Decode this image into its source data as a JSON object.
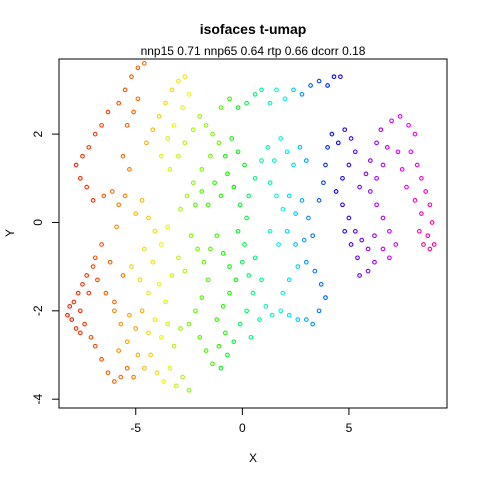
{
  "chart_data": {
    "type": "scatter",
    "title": "isofaces t-umap",
    "subtitle": "nnp15 0.71 nnp65 0.64 rtp 0.66 dcorr 0.18",
    "xlabel": "X",
    "ylabel": "Y",
    "xlim": [
      -8.6,
      9.6
    ],
    "ylim": [
      -4.2,
      3.7
    ],
    "xticks": [
      -5,
      0,
      5
    ],
    "yticks": [
      -4,
      -2,
      0,
      2
    ],
    "x_tick_labels": [
      "-5",
      "0",
      "5"
    ],
    "y_tick_labels": [
      "-4",
      "-2",
      "0",
      "2"
    ],
    "grid": false,
    "legend": "none",
    "color_scale": "rainbow (hue by point order)",
    "points": [
      [
        -8.2,
        -2.1,
        0.02
      ],
      [
        -8.1,
        -1.9,
        0.02
      ],
      [
        -8.0,
        -2.2,
        0.02
      ],
      [
        -7.9,
        -1.8,
        0.03
      ],
      [
        -7.8,
        -2.4,
        0.03
      ],
      [
        -7.7,
        -1.6,
        0.03
      ],
      [
        -7.6,
        -2.0,
        0.03
      ],
      [
        -7.5,
        -1.4,
        0.04
      ],
      [
        -7.6,
        -2.5,
        0.03
      ],
      [
        -7.3,
        -1.2,
        0.04
      ],
      [
        -7.2,
        -1.6,
        0.04
      ],
      [
        -7.4,
        -2.3,
        0.04
      ],
      [
        -7.0,
        -1.0,
        0.05
      ],
      [
        -6.8,
        -1.3,
        0.05
      ],
      [
        -7.1,
        -2.6,
        0.05
      ],
      [
        -6.9,
        -2.8,
        0.05
      ],
      [
        -6.6,
        -3.1,
        0.06
      ],
      [
        -6.3,
        -3.4,
        0.07
      ],
      [
        -6.0,
        -3.6,
        0.07
      ],
      [
        -5.7,
        -3.5,
        0.08
      ],
      [
        -5.4,
        -3.3,
        0.08
      ],
      [
        -5.1,
        -3.5,
        0.09
      ],
      [
        -6.9,
        -0.8,
        0.06
      ],
      [
        -6.6,
        -0.5,
        0.06
      ],
      [
        -6.2,
        -0.9,
        0.07
      ],
      [
        -6.4,
        -1.6,
        0.07
      ],
      [
        -6.0,
        -1.8,
        0.08
      ],
      [
        -5.6,
        -1.2,
        0.09
      ],
      [
        -7.0,
        0.5,
        0.03
      ],
      [
        -7.3,
        0.8,
        0.03
      ],
      [
        -7.6,
        1.0,
        0.03
      ],
      [
        -7.8,
        1.3,
        0.03
      ],
      [
        -7.5,
        1.5,
        0.04
      ],
      [
        -7.2,
        1.7,
        0.04
      ],
      [
        -6.9,
        2.0,
        0.04
      ],
      [
        -6.6,
        2.2,
        0.05
      ],
      [
        -6.3,
        2.5,
        0.05
      ],
      [
        -5.8,
        2.7,
        0.06
      ],
      [
        -5.5,
        3.0,
        0.06
      ],
      [
        -5.2,
        3.3,
        0.07
      ],
      [
        -4.9,
        3.5,
        0.07
      ],
      [
        -4.6,
        3.6,
        0.08
      ],
      [
        -5.4,
        2.2,
        0.07
      ],
      [
        -5.1,
        2.5,
        0.07
      ],
      [
        -4.9,
        2.8,
        0.08
      ],
      [
        -5.6,
        1.5,
        0.08
      ],
      [
        -5.3,
        1.2,
        0.09
      ],
      [
        -6.5,
        0.6,
        0.07
      ],
      [
        -6.1,
        0.7,
        0.08
      ],
      [
        -5.8,
        0.4,
        0.09
      ],
      [
        -5.5,
        0.6,
        0.1
      ],
      [
        -5.9,
        -0.1,
        0.1
      ],
      [
        -6.0,
        -2.0,
        0.1
      ],
      [
        -5.7,
        -2.3,
        0.11
      ],
      [
        -5.3,
        -2.1,
        0.12
      ],
      [
        -5.0,
        -2.4,
        0.12
      ],
      [
        -4.7,
        -2.0,
        0.13
      ],
      [
        -5.8,
        -2.9,
        0.11
      ],
      [
        -5.4,
        -2.7,
        0.12
      ],
      [
        -4.9,
        -3.0,
        0.13
      ],
      [
        -4.6,
        -3.3,
        0.14
      ],
      [
        -4.3,
        -3.0,
        0.15
      ],
      [
        -4.0,
        -3.4,
        0.16
      ],
      [
        -3.7,
        -3.6,
        0.18
      ],
      [
        -3.4,
        -3.3,
        0.2
      ],
      [
        -3.1,
        -3.7,
        0.22
      ],
      [
        -2.8,
        -3.5,
        0.24
      ],
      [
        -2.5,
        -3.8,
        0.26
      ],
      [
        -4.4,
        -2.5,
        0.16
      ],
      [
        -4.1,
        -2.2,
        0.17
      ],
      [
        -3.8,
        -2.6,
        0.19
      ],
      [
        -3.5,
        -2.3,
        0.21
      ],
      [
        -3.2,
        -2.8,
        0.23
      ],
      [
        -2.9,
        -2.4,
        0.25
      ],
      [
        -5.0,
        0.2,
        0.14
      ],
      [
        -4.7,
        0.5,
        0.14
      ],
      [
        -4.4,
        0.1,
        0.15
      ],
      [
        -4.1,
        -0.2,
        0.16
      ],
      [
        -4.6,
        -0.6,
        0.16
      ],
      [
        -4.2,
        -0.9,
        0.17
      ],
      [
        -3.8,
        -0.5,
        0.18
      ],
      [
        -3.5,
        -0.1,
        0.19
      ],
      [
        -5.2,
        -1.0,
        0.15
      ],
      [
        -4.8,
        -1.3,
        0.16
      ],
      [
        -4.4,
        -1.6,
        0.17
      ],
      [
        -3.9,
        -1.4,
        0.19
      ],
      [
        -3.6,
        -1.8,
        0.2
      ],
      [
        -3.3,
        -1.2,
        0.21
      ],
      [
        -3.0,
        -0.8,
        0.22
      ],
      [
        -2.7,
        -1.1,
        0.24
      ],
      [
        -4.5,
        1.8,
        0.13
      ],
      [
        -4.2,
        2.1,
        0.14
      ],
      [
        -3.9,
        2.4,
        0.15
      ],
      [
        -3.6,
        2.7,
        0.16
      ],
      [
        -3.3,
        3.0,
        0.16
      ],
      [
        -3.0,
        3.2,
        0.17
      ],
      [
        -2.7,
        3.3,
        0.17
      ],
      [
        -2.5,
        2.9,
        0.18
      ],
      [
        -2.8,
        2.6,
        0.19
      ],
      [
        -3.2,
        2.2,
        0.19
      ],
      [
        -3.5,
        1.9,
        0.2
      ],
      [
        -3.8,
        1.5,
        0.2
      ],
      [
        -3.4,
        1.2,
        0.21
      ],
      [
        -3.0,
        1.5,
        0.22
      ],
      [
        -2.7,
        1.8,
        0.23
      ],
      [
        -2.3,
        2.1,
        0.24
      ],
      [
        -2.0,
        2.4,
        0.25
      ],
      [
        -1.7,
        2.2,
        0.26
      ],
      [
        -1.4,
        2.0,
        0.27
      ],
      [
        -1.1,
        1.8,
        0.28
      ],
      [
        -1.5,
        1.5,
        0.28
      ],
      [
        -1.9,
        1.2,
        0.27
      ],
      [
        -2.3,
        0.9,
        0.26
      ],
      [
        -2.6,
        0.6,
        0.25
      ],
      [
        -2.9,
        0.3,
        0.24
      ],
      [
        -2.4,
        -0.3,
        0.27
      ],
      [
        -2.1,
        -0.6,
        0.28
      ],
      [
        -1.8,
        -0.9,
        0.29
      ],
      [
        -1.5,
        -0.6,
        0.3
      ],
      [
        -1.2,
        -0.3,
        0.31
      ],
      [
        -1.6,
        -1.3,
        0.31
      ],
      [
        -1.9,
        -1.7,
        0.3
      ],
      [
        -2.2,
        -2.0,
        0.29
      ],
      [
        -2.5,
        -2.3,
        0.28
      ],
      [
        -2.0,
        -2.6,
        0.3
      ],
      [
        -1.7,
        -2.9,
        0.31
      ],
      [
        -1.4,
        -3.2,
        0.32
      ],
      [
        -1.1,
        -2.8,
        0.33
      ],
      [
        -0.8,
        -2.5,
        0.34
      ],
      [
        -1.2,
        -2.2,
        0.33
      ],
      [
        -0.9,
        -1.9,
        0.34
      ],
      [
        -0.6,
        -1.6,
        0.35
      ],
      [
        -0.3,
        -1.3,
        0.36
      ],
      [
        -0.6,
        -1.0,
        0.36
      ],
      [
        -0.9,
        -0.7,
        0.35
      ],
      [
        -2.2,
        0.4,
        0.3
      ],
      [
        -1.9,
        0.7,
        0.31
      ],
      [
        -1.6,
        0.4,
        0.32
      ],
      [
        -1.3,
        0.9,
        0.33
      ],
      [
        -1.0,
        0.6,
        0.34
      ],
      [
        -0.7,
        1.1,
        0.35
      ],
      [
        -0.4,
        0.8,
        0.36
      ],
      [
        -0.8,
        1.5,
        0.35
      ],
      [
        -0.5,
        1.9,
        0.36
      ],
      [
        -0.2,
        1.6,
        0.37
      ],
      [
        0.1,
        1.3,
        0.38
      ],
      [
        -0.1,
        0.4,
        0.4
      ],
      [
        0.2,
        0.1,
        0.41
      ],
      [
        -0.2,
        -0.2,
        0.4
      ],
      [
        0.1,
        -0.5,
        0.42
      ],
      [
        -1.0,
        2.6,
        0.3
      ],
      [
        -0.6,
        2.8,
        0.33
      ],
      [
        -0.2,
        2.6,
        0.38
      ],
      [
        0.2,
        2.7,
        0.42
      ],
      [
        0.6,
        2.9,
        0.45
      ],
      [
        0.9,
        3.0,
        0.48
      ],
      [
        1.3,
        2.7,
        0.5
      ],
      [
        1.6,
        3.0,
        0.52
      ],
      [
        2.0,
        2.8,
        0.55
      ],
      [
        2.4,
        3.0,
        0.58
      ],
      [
        2.8,
        2.9,
        0.62
      ],
      [
        3.2,
        3.1,
        0.65
      ],
      [
        3.6,
        3.2,
        0.68
      ],
      [
        4.0,
        3.1,
        0.7
      ],
      [
        4.3,
        3.3,
        0.73
      ],
      [
        4.6,
        3.3,
        0.75
      ],
      [
        0.0,
        -0.9,
        0.42
      ],
      [
        0.3,
        -1.2,
        0.44
      ],
      [
        0.6,
        -0.8,
        0.45
      ],
      [
        0.9,
        -1.3,
        0.47
      ],
      [
        0.5,
        -1.6,
        0.46
      ],
      [
        0.2,
        -2.0,
        0.44
      ],
      [
        -0.1,
        -2.3,
        0.43
      ],
      [
        -0.4,
        -2.7,
        0.41
      ],
      [
        -0.7,
        -3.0,
        0.4
      ],
      [
        -1.0,
        -3.3,
        0.39
      ],
      [
        0.4,
        -2.6,
        0.45
      ],
      [
        0.8,
        -2.2,
        0.48
      ],
      [
        1.1,
        -1.9,
        0.5
      ],
      [
        1.4,
        -2.1,
        0.52
      ],
      [
        1.8,
        -2.0,
        0.54
      ],
      [
        2.2,
        -2.1,
        0.56
      ],
      [
        2.6,
        -2.2,
        0.58
      ],
      [
        3.0,
        -2.2,
        0.6
      ],
      [
        3.3,
        -2.3,
        0.62
      ],
      [
        3.6,
        -2.0,
        0.64
      ],
      [
        3.9,
        -1.7,
        0.66
      ],
      [
        3.7,
        -1.4,
        0.65
      ],
      [
        3.4,
        -1.1,
        0.63
      ],
      [
        3.0,
        -0.9,
        0.61
      ],
      [
        2.6,
        -1.0,
        0.58
      ],
      [
        2.2,
        -1.3,
        0.56
      ],
      [
        1.9,
        -1.6,
        0.55
      ],
      [
        0.3,
        0.6,
        0.43
      ],
      [
        0.6,
        1.0,
        0.45
      ],
      [
        0.9,
        1.4,
        0.47
      ],
      [
        1.2,
        1.7,
        0.49
      ],
      [
        1.5,
        1.4,
        0.51
      ],
      [
        1.8,
        1.9,
        0.53
      ],
      [
        2.1,
        1.6,
        0.55
      ],
      [
        2.4,
        1.3,
        0.57
      ],
      [
        2.7,
        1.7,
        0.59
      ],
      [
        3.0,
        1.4,
        0.61
      ],
      [
        1.3,
        0.9,
        0.5
      ],
      [
        1.6,
        0.6,
        0.52
      ],
      [
        1.9,
        0.3,
        0.54
      ],
      [
        2.2,
        0.6,
        0.56
      ],
      [
        2.5,
        0.2,
        0.58
      ],
      [
        2.8,
        0.5,
        0.6
      ],
      [
        3.1,
        0.1,
        0.62
      ],
      [
        3.3,
        -0.3,
        0.64
      ],
      [
        2.9,
        -0.4,
        0.61
      ],
      [
        2.5,
        -0.5,
        0.59
      ],
      [
        2.1,
        -0.2,
        0.57
      ],
      [
        1.7,
        -0.5,
        0.55
      ],
      [
        1.3,
        -0.2,
        0.52
      ],
      [
        3.6,
        0.5,
        0.66
      ],
      [
        3.8,
        0.9,
        0.68
      ],
      [
        3.9,
        1.3,
        0.69
      ],
      [
        4.0,
        1.7,
        0.7
      ],
      [
        4.2,
        2.0,
        0.72
      ],
      [
        4.5,
        1.8,
        0.74
      ],
      [
        4.8,
        2.1,
        0.76
      ],
      [
        5.1,
        1.9,
        0.78
      ],
      [
        5.3,
        1.6,
        0.79
      ],
      [
        5.0,
        1.3,
        0.77
      ],
      [
        4.7,
        1.0,
        0.75
      ],
      [
        4.4,
        0.7,
        0.73
      ],
      [
        4.7,
        0.4,
        0.75
      ],
      [
        5.0,
        0.1,
        0.77
      ],
      [
        5.3,
        -0.2,
        0.79
      ],
      [
        5.6,
        -0.4,
        0.8
      ],
      [
        5.4,
        -0.8,
        0.79
      ],
      [
        5.1,
        -0.5,
        0.78
      ],
      [
        4.8,
        -0.2,
        0.76
      ],
      [
        5.5,
        -1.2,
        0.8
      ],
      [
        5.5,
        0.8,
        0.81
      ],
      [
        5.8,
        1.1,
        0.82
      ],
      [
        6.0,
        1.4,
        0.83
      ],
      [
        6.3,
        1.8,
        0.84
      ],
      [
        6.5,
        2.1,
        0.85
      ],
      [
        6.8,
        1.7,
        0.86
      ],
      [
        6.6,
        1.3,
        0.86
      ],
      [
        6.3,
        1.0,
        0.85
      ],
      [
        6.0,
        0.7,
        0.84
      ],
      [
        6.3,
        0.4,
        0.85
      ],
      [
        6.6,
        0.1,
        0.86
      ],
      [
        6.9,
        -0.2,
        0.87
      ],
      [
        7.2,
        -0.5,
        0.88
      ],
      [
        6.9,
        -0.8,
        0.87
      ],
      [
        6.6,
        -0.6,
        0.86
      ],
      [
        6.2,
        -0.3,
        0.84
      ],
      [
        5.9,
        -0.6,
        0.83
      ],
      [
        6.2,
        -0.9,
        0.84
      ],
      [
        5.9,
        -1.1,
        0.82
      ],
      [
        7.0,
        2.3,
        0.88
      ],
      [
        7.4,
        2.4,
        0.89
      ],
      [
        7.8,
        2.2,
        0.91
      ],
      [
        8.1,
        2.0,
        0.92
      ],
      [
        7.9,
        1.6,
        0.91
      ],
      [
        8.2,
        1.3,
        0.93
      ],
      [
        8.4,
        1.0,
        0.94
      ],
      [
        8.6,
        0.7,
        0.95
      ],
      [
        8.8,
        0.4,
        0.96
      ],
      [
        8.9,
        0.0,
        0.97
      ],
      [
        8.7,
        -0.3,
        0.97
      ],
      [
        9.0,
        -0.5,
        0.98
      ],
      [
        8.8,
        -0.6,
        0.98
      ],
      [
        8.5,
        -0.5,
        0.97
      ],
      [
        8.3,
        -0.2,
        0.96
      ],
      [
        8.4,
        0.2,
        0.95
      ],
      [
        8.1,
        0.5,
        0.94
      ],
      [
        7.7,
        0.8,
        0.92
      ],
      [
        7.5,
        1.2,
        0.9
      ],
      [
        7.3,
        1.6,
        0.89
      ]
    ]
  }
}
